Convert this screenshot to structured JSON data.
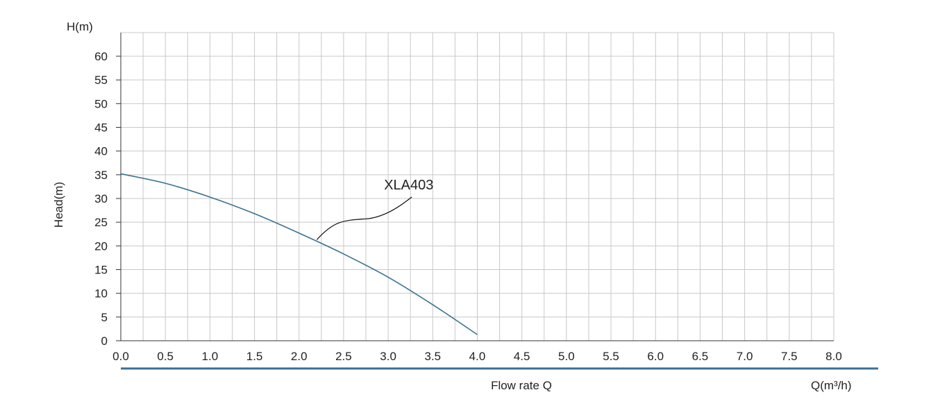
{
  "chart_data": {
    "type": "line",
    "title": "",
    "y_unit_label": "H(m)",
    "ylabel": "Head(m)",
    "xlabel": "Flow rate Q",
    "x_unit_label": "Q(m³/h)",
    "xlim": [
      0,
      8
    ],
    "ylim": [
      0,
      62
    ],
    "x_ticks": [
      "0.0",
      "0.5",
      "1.0",
      "1.5",
      "2.0",
      "2.5",
      "3.0",
      "3.5",
      "4.0",
      "4.5",
      "5.0",
      "5.5",
      "6.0",
      "6.5",
      "7.0",
      "7.5",
      "8.0"
    ],
    "y_ticks": [
      "0",
      "5",
      "10",
      "15",
      "20",
      "25",
      "30",
      "35",
      "40",
      "45",
      "50",
      "55",
      "60"
    ],
    "grid": true,
    "series": [
      {
        "name": "XLA403",
        "color": "#3a7290",
        "x": [
          0.0,
          0.5,
          1.0,
          1.5,
          2.0,
          2.5,
          3.0,
          3.5,
          4.0
        ],
        "y": [
          35.2,
          33.2,
          30.3,
          26.8,
          22.7,
          18.3,
          13.4,
          7.6,
          1.3
        ]
      }
    ],
    "annotations": [
      {
        "text": "XLA403",
        "point": [
          2.2,
          21.3
        ],
        "label_at": [
          3.25,
          31.2
        ]
      }
    ]
  },
  "style": {
    "curve_color": "#3a7290",
    "baseline_color": "#3a6f98",
    "grid_color": "#c8c8c8"
  }
}
